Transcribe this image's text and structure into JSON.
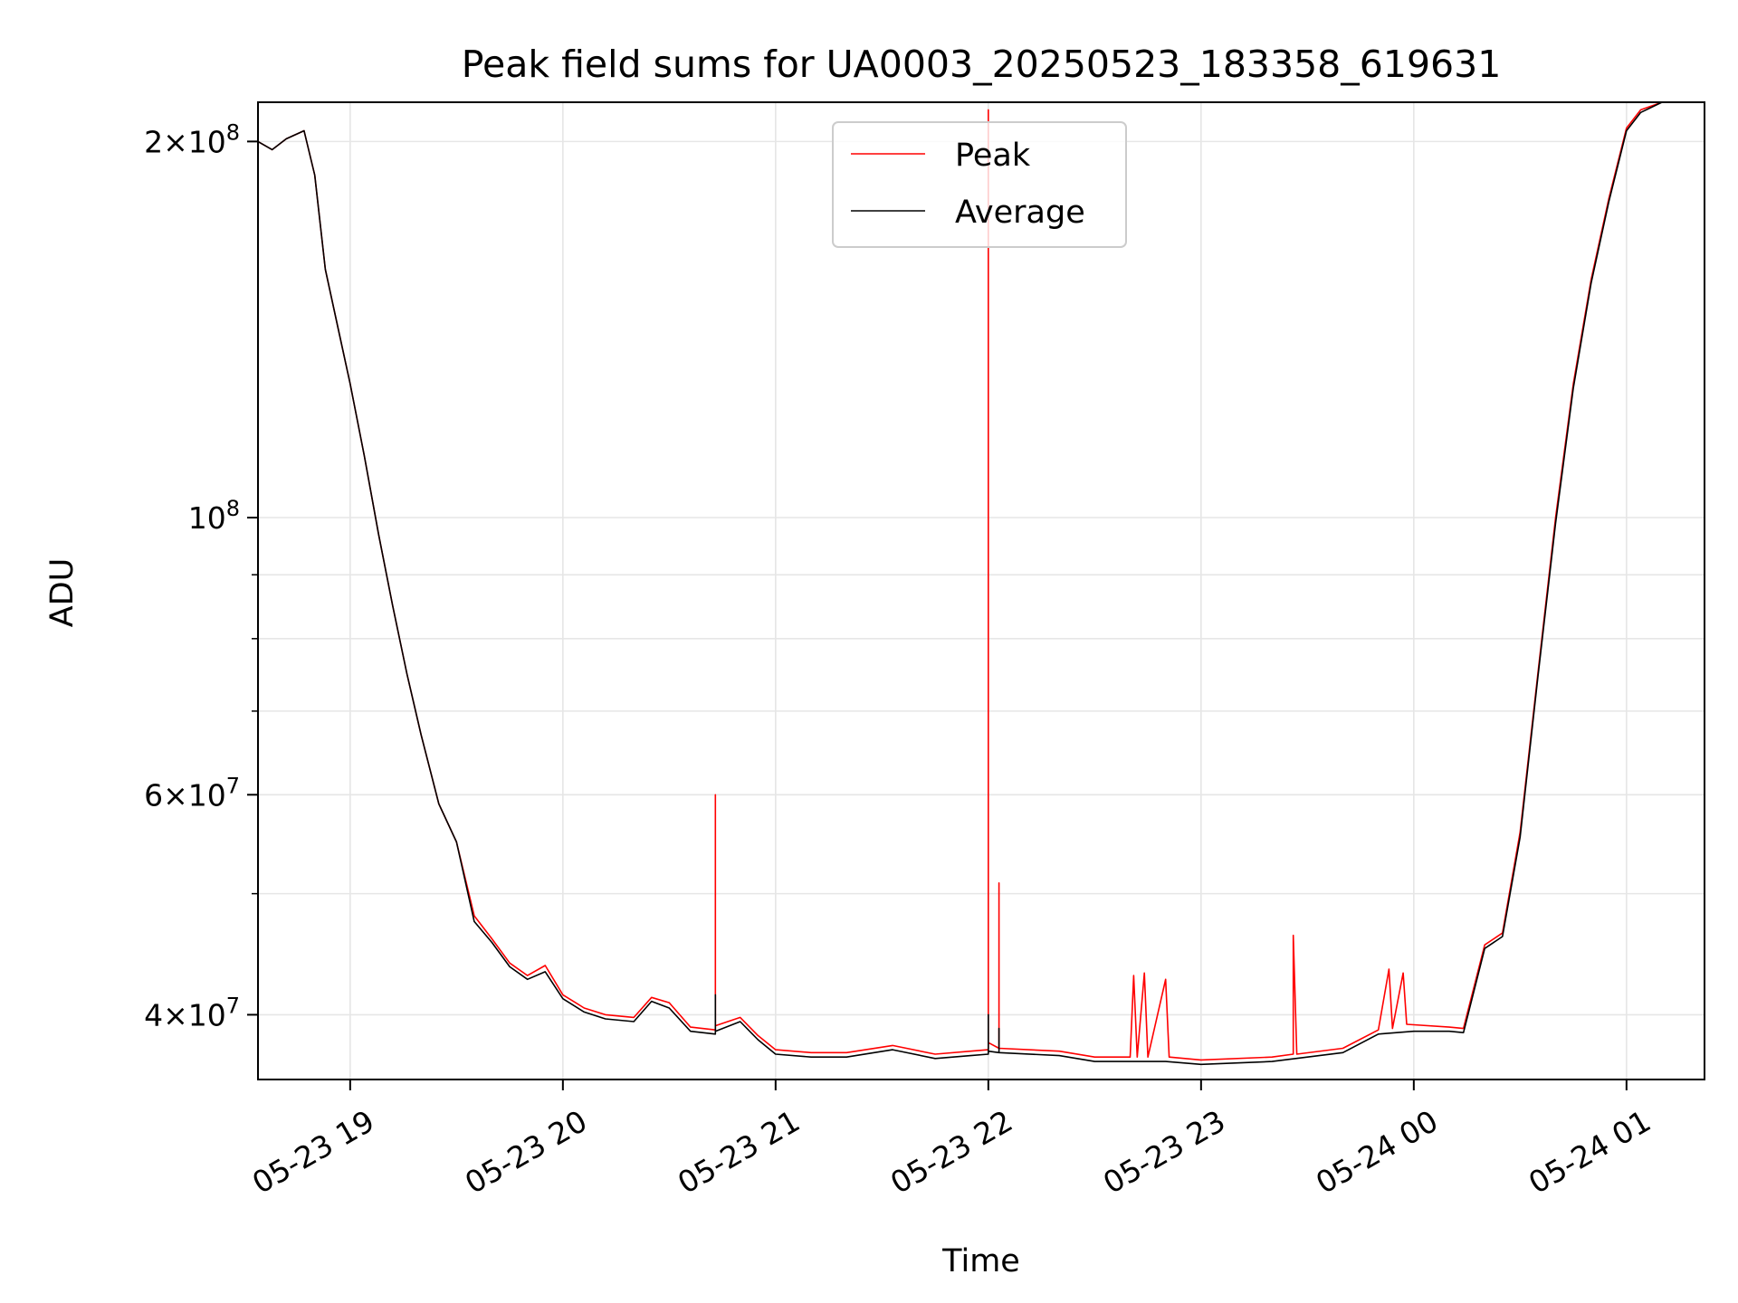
{
  "chart_data": {
    "type": "line",
    "title": "Peak field sums for UA0003_20250523_183358_619631",
    "xlabel": "Time",
    "ylabel": "ADU",
    "yscale": "log",
    "grid": true,
    "legend_position": "top-center",
    "xlim": [
      "2025-05-23 18:34",
      "2025-05-24 01:22"
    ],
    "ylim": [
      35500000,
      215000000
    ],
    "x_ticks": [
      {
        "value": "2025-05-23 19:00",
        "label": "05-23 19"
      },
      {
        "value": "2025-05-23 20:00",
        "label": "05-23 20"
      },
      {
        "value": "2025-05-23 21:00",
        "label": "05-23 21"
      },
      {
        "value": "2025-05-23 22:00",
        "label": "05-23 22"
      },
      {
        "value": "2025-05-23 23:00",
        "label": "05-23 23"
      },
      {
        "value": "2025-05-24 00:00",
        "label": "05-24 00"
      },
      {
        "value": "2025-05-24 01:00",
        "label": "05-24 01"
      }
    ],
    "y_major_ticks": [
      {
        "value": 40000000,
        "mantissa": "4",
        "exp": "7"
      },
      {
        "value": 60000000,
        "mantissa": "6",
        "exp": "7"
      },
      {
        "value": 100000000,
        "mantissa": "",
        "exp": "8"
      },
      {
        "value": 200000000,
        "mantissa": "2",
        "exp": "8"
      }
    ],
    "y_minor_ticks": [
      50000000,
      70000000,
      80000000,
      90000000
    ],
    "series": [
      {
        "name": "Peak",
        "color": "#ff0000",
        "points": [
          [
            "2025-05-23 18:34",
            200000000
          ],
          [
            "2025-05-23 18:38",
            197000000
          ],
          [
            "2025-05-23 18:42",
            201000000
          ],
          [
            "2025-05-23 18:47",
            204000000
          ],
          [
            "2025-05-23 18:50",
            188000000
          ],
          [
            "2025-05-23 18:53",
            158000000
          ],
          [
            "2025-05-23 18:57",
            140000000
          ],
          [
            "2025-05-23 19:00",
            128000000
          ],
          [
            "2025-05-23 19:04",
            112000000
          ],
          [
            "2025-05-23 19:08",
            97000000
          ],
          [
            "2025-05-23 19:12",
            85000000
          ],
          [
            "2025-05-23 19:16",
            75000000
          ],
          [
            "2025-05-23 19:20",
            67000000
          ],
          [
            "2025-05-23 19:25",
            59000000
          ],
          [
            "2025-05-23 19:30",
            55000000
          ],
          [
            "2025-05-23 19:35",
            48000000
          ],
          [
            "2025-05-23 19:40",
            46000000
          ],
          [
            "2025-05-23 19:45",
            44000000
          ],
          [
            "2025-05-23 19:50",
            43000000
          ],
          [
            "2025-05-23 19:55",
            43800000
          ],
          [
            "2025-05-23 20:00",
            41500000
          ],
          [
            "2025-05-23 20:06",
            40500000
          ],
          [
            "2025-05-23 20:12",
            40000000
          ],
          [
            "2025-05-23 20:20",
            39800000
          ],
          [
            "2025-05-23 20:25",
            41300000
          ],
          [
            "2025-05-23 20:30",
            40900000
          ],
          [
            "2025-05-23 20:36",
            39100000
          ],
          [
            "2025-05-23 20:43",
            38900000
          ],
          [
            "2025-05-23 20:43",
            60000000
          ],
          [
            "2025-05-23 20:43",
            39200000
          ],
          [
            "2025-05-23 20:50",
            39800000
          ],
          [
            "2025-05-23 20:55",
            38500000
          ],
          [
            "2025-05-23 21:00",
            37500000
          ],
          [
            "2025-05-23 21:10",
            37300000
          ],
          [
            "2025-05-23 21:20",
            37300000
          ],
          [
            "2025-05-23 21:33",
            37800000
          ],
          [
            "2025-05-23 21:45",
            37200000
          ],
          [
            "2025-05-23 21:55",
            37400000
          ],
          [
            "2025-05-23 22:00",
            37500000
          ],
          [
            "2025-05-23 22:00",
            212000000
          ],
          [
            "2025-05-23 22:00",
            38000000
          ],
          [
            "2025-05-23 22:03",
            37600000
          ],
          [
            "2025-05-23 22:03",
            51000000
          ],
          [
            "2025-05-23 22:03",
            37600000
          ],
          [
            "2025-05-23 22:20",
            37400000
          ],
          [
            "2025-05-23 22:30",
            37000000
          ],
          [
            "2025-05-23 22:40",
            37000000
          ],
          [
            "2025-05-23 22:41",
            43000000
          ],
          [
            "2025-05-23 22:42",
            37000000
          ],
          [
            "2025-05-23 22:44",
            43200000
          ],
          [
            "2025-05-23 22:45",
            37000000
          ],
          [
            "2025-05-23 22:50",
            42700000
          ],
          [
            "2025-05-23 22:51",
            37000000
          ],
          [
            "2025-05-23 23:00",
            36800000
          ],
          [
            "2025-05-23 23:20",
            37000000
          ],
          [
            "2025-05-23 23:26",
            37200000
          ],
          [
            "2025-05-23 23:26",
            46300000
          ],
          [
            "2025-05-23 23:27",
            37200000
          ],
          [
            "2025-05-23 23:40",
            37600000
          ],
          [
            "2025-05-23 23:50",
            38900000
          ],
          [
            "2025-05-23 23:53",
            43500000
          ],
          [
            "2025-05-23 23:54",
            39000000
          ],
          [
            "2025-05-23 23:57",
            43200000
          ],
          [
            "2025-05-23 23:58",
            39300000
          ],
          [
            "2025-05-24 00:10",
            39100000
          ],
          [
            "2025-05-24 00:14",
            39000000
          ],
          [
            "2025-05-24 00:20",
            45500000
          ],
          [
            "2025-05-24 00:25",
            46500000
          ],
          [
            "2025-05-24 00:30",
            56000000
          ],
          [
            "2025-05-24 00:35",
            75000000
          ],
          [
            "2025-05-24 00:40",
            100000000
          ],
          [
            "2025-05-24 00:45",
            128000000
          ],
          [
            "2025-05-24 00:50",
            155000000
          ],
          [
            "2025-05-24 00:55",
            180000000
          ],
          [
            "2025-05-24 01:00",
            205000000
          ],
          [
            "2025-05-24 01:04",
            212000000
          ],
          [
            "2025-05-24 01:10",
            215000000
          ]
        ]
      },
      {
        "name": "Average",
        "color": "#000000",
        "points": [
          [
            "2025-05-23 18:34",
            200000000
          ],
          [
            "2025-05-23 18:38",
            197000000
          ],
          [
            "2025-05-23 18:42",
            201000000
          ],
          [
            "2025-05-23 18:47",
            204000000
          ],
          [
            "2025-05-23 18:50",
            188000000
          ],
          [
            "2025-05-23 18:53",
            158000000
          ],
          [
            "2025-05-23 18:57",
            140000000
          ],
          [
            "2025-05-23 19:00",
            128000000
          ],
          [
            "2025-05-23 19:04",
            112000000
          ],
          [
            "2025-05-23 19:08",
            97000000
          ],
          [
            "2025-05-23 19:12",
            85000000
          ],
          [
            "2025-05-23 19:16",
            75000000
          ],
          [
            "2025-05-23 19:20",
            67000000
          ],
          [
            "2025-05-23 19:25",
            59000000
          ],
          [
            "2025-05-23 19:30",
            55000000
          ],
          [
            "2025-05-23 19:35",
            47500000
          ],
          [
            "2025-05-23 19:40",
            45700000
          ],
          [
            "2025-05-23 19:45",
            43700000
          ],
          [
            "2025-05-23 19:50",
            42700000
          ],
          [
            "2025-05-23 19:55",
            43300000
          ],
          [
            "2025-05-23 20:00",
            41200000
          ],
          [
            "2025-05-23 20:06",
            40200000
          ],
          [
            "2025-05-23 20:12",
            39700000
          ],
          [
            "2025-05-23 20:20",
            39500000
          ],
          [
            "2025-05-23 20:25",
            41000000
          ],
          [
            "2025-05-23 20:30",
            40500000
          ],
          [
            "2025-05-23 20:36",
            38800000
          ],
          [
            "2025-05-23 20:43",
            38600000
          ],
          [
            "2025-05-23 20:43",
            41500000
          ],
          [
            "2025-05-23 20:43",
            38800000
          ],
          [
            "2025-05-23 20:50",
            39500000
          ],
          [
            "2025-05-23 20:55",
            38200000
          ],
          [
            "2025-05-23 21:00",
            37200000
          ],
          [
            "2025-05-23 21:10",
            37000000
          ],
          [
            "2025-05-23 21:20",
            37000000
          ],
          [
            "2025-05-23 21:33",
            37500000
          ],
          [
            "2025-05-23 21:45",
            36900000
          ],
          [
            "2025-05-23 21:55",
            37100000
          ],
          [
            "2025-05-23 22:00",
            37200000
          ],
          [
            "2025-05-23 22:00",
            40000000
          ],
          [
            "2025-05-23 22:00",
            37400000
          ],
          [
            "2025-05-23 22:03",
            37300000
          ],
          [
            "2025-05-23 22:03",
            39000000
          ],
          [
            "2025-05-23 22:03",
            37300000
          ],
          [
            "2025-05-23 22:20",
            37100000
          ],
          [
            "2025-05-23 22:30",
            36700000
          ],
          [
            "2025-05-23 22:40",
            36700000
          ],
          [
            "2025-05-23 22:50",
            36700000
          ],
          [
            "2025-05-23 23:00",
            36500000
          ],
          [
            "2025-05-23 23:20",
            36700000
          ],
          [
            "2025-05-23 23:40",
            37300000
          ],
          [
            "2025-05-23 23:50",
            38600000
          ],
          [
            "2025-05-24 00:00",
            38800000
          ],
          [
            "2025-05-24 00:10",
            38800000
          ],
          [
            "2025-05-24 00:14",
            38700000
          ],
          [
            "2025-05-24 00:20",
            45200000
          ],
          [
            "2025-05-24 00:25",
            46200000
          ],
          [
            "2025-05-24 00:30",
            55500000
          ],
          [
            "2025-05-24 00:35",
            74500000
          ],
          [
            "2025-05-24 00:40",
            99000000
          ],
          [
            "2025-05-24 00:45",
            127000000
          ],
          [
            "2025-05-24 00:50",
            154000000
          ],
          [
            "2025-05-24 00:55",
            179000000
          ],
          [
            "2025-05-24 01:00",
            204000000
          ],
          [
            "2025-05-24 01:04",
            211000000
          ],
          [
            "2025-05-24 01:10",
            215000000
          ]
        ]
      }
    ]
  }
}
